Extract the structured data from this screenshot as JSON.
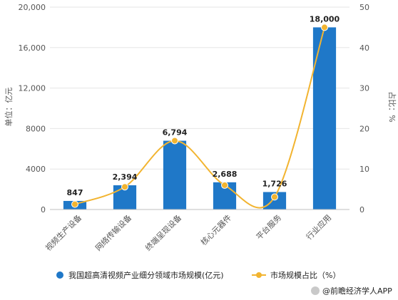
{
  "chart_data": {
    "type": "bar",
    "categories": [
      "视频生产设备",
      "网络传输设备",
      "终端呈现设备",
      "核心元器件",
      "平台服务",
      "行业应用"
    ],
    "series": [
      {
        "name": "我国超高清视频产业细分领域市场规模(亿元)",
        "kind": "bar",
        "axis": "left",
        "color": "#1f78c8",
        "values": [
          847,
          2394,
          6794,
          2688,
          1726,
          18000
        ],
        "labels": [
          "847",
          "2,394",
          "6,794",
          "2,688",
          "1,726",
          "18,000"
        ]
      },
      {
        "name": "市场规模占比（%）",
        "kind": "line",
        "axis": "right",
        "color": "#f2b430",
        "smooth": true,
        "values": [
          1.3,
          5.6,
          17.0,
          6.0,
          3.1,
          45.0
        ]
      }
    ],
    "ylabel": "单位：亿元",
    "y2label": "占比：%",
    "ylim": [
      0,
      20000
    ],
    "y2lim": [
      0,
      50
    ],
    "yticks": [
      "0",
      "4000",
      "8000",
      "12,000",
      "16,000",
      "20,000"
    ],
    "y2ticks": [
      "0",
      "10",
      "20",
      "30",
      "40",
      "50"
    ],
    "grid": true,
    "legend": "bottom"
  },
  "credit": "@前瞻经济学人APP",
  "colors": {
    "grid": "#e6e6e6",
    "axis": "#bfbfbf"
  }
}
